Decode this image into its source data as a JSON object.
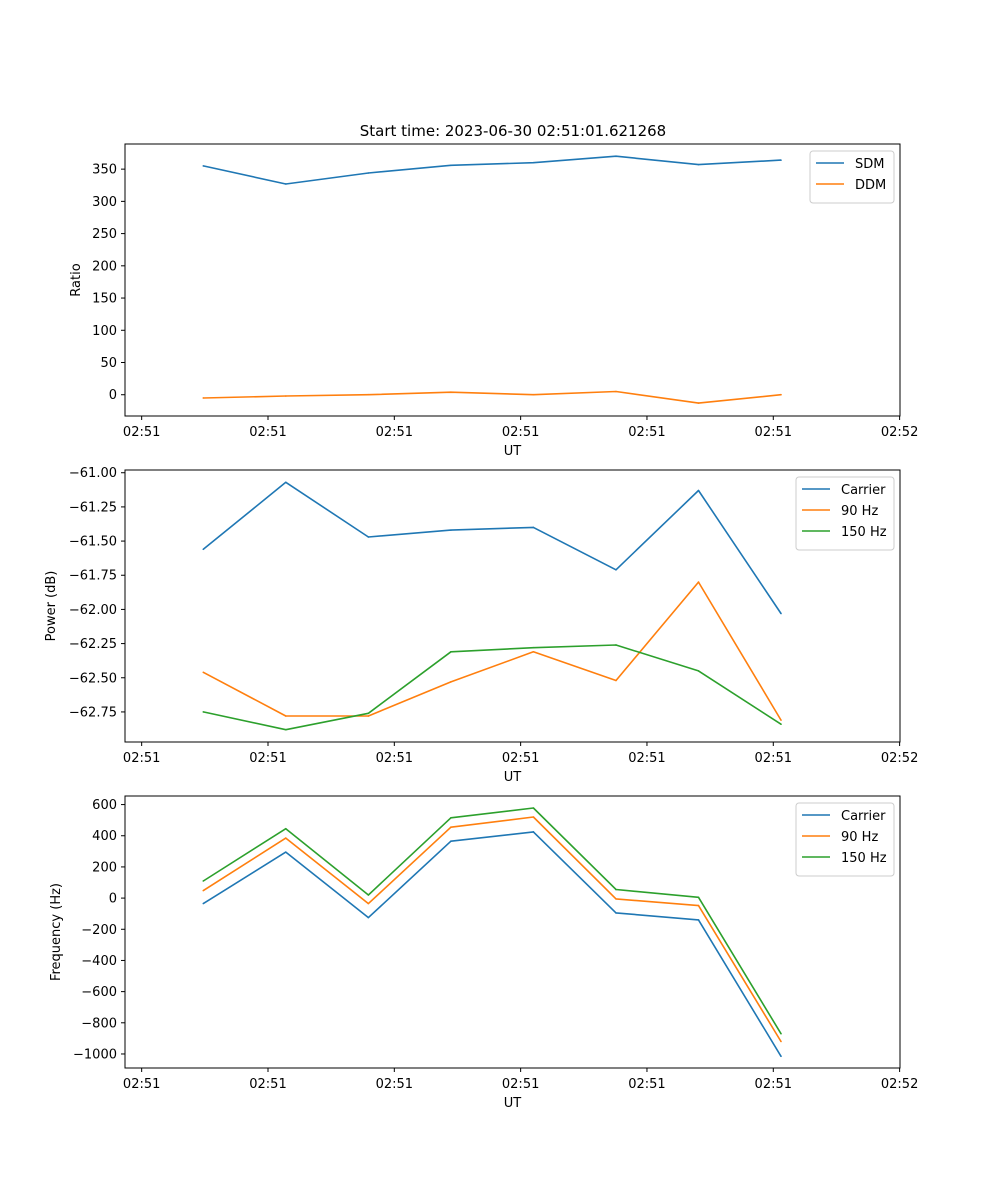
{
  "figure": {
    "title": "Start time: 2023-06-30 02:51:01.621268"
  },
  "chart_data": [
    {
      "type": "line",
      "xlabel": "UT",
      "ylabel": "Ratio",
      "x_tick_labels": [
        "02:51",
        "02:51",
        "02:51",
        "02:51",
        "02:51",
        "02:51",
        "02:52"
      ],
      "y_ticks": [
        0,
        50,
        100,
        150,
        200,
        250,
        300,
        350
      ],
      "ylim": [
        -33,
        389
      ],
      "grid": false,
      "legend": "top-right",
      "series": [
        {
          "name": "SDM",
          "color": "#1f77b4",
          "values": [
            355,
            327,
            344,
            356,
            360,
            370,
            357,
            364
          ]
        },
        {
          "name": "DDM",
          "color": "#ff7f0e",
          "values": [
            -5,
            -2,
            0,
            4,
            0,
            5,
            -13,
            0
          ]
        }
      ]
    },
    {
      "type": "line",
      "xlabel": "UT",
      "ylabel": "Power (dB)",
      "x_tick_labels": [
        "02:51",
        "02:51",
        "02:51",
        "02:51",
        "02:51",
        "02:51",
        "02:52"
      ],
      "y_ticks": [
        -61.0,
        -61.25,
        -61.5,
        -61.75,
        -62.0,
        -62.25,
        -62.5,
        -62.75
      ],
      "y_tick_labels": [
        "−61.00",
        "−61.25",
        "−61.50",
        "−61.75",
        "−62.00",
        "−62.25",
        "−62.50",
        "−62.75"
      ],
      "ylim": [
        -62.97,
        -60.98
      ],
      "grid": false,
      "legend": "top-right",
      "series": [
        {
          "name": "Carrier",
          "color": "#1f77b4",
          "values": [
            -61.56,
            -61.07,
            -61.47,
            -61.42,
            -61.4,
            -61.71,
            -61.13,
            -62.03
          ]
        },
        {
          "name": "90 Hz",
          "color": "#ff7f0e",
          "values": [
            -62.46,
            -62.78,
            -62.78,
            -62.53,
            -62.31,
            -62.52,
            -61.8,
            -62.81
          ]
        },
        {
          "name": "150 Hz",
          "color": "#2ca02c",
          "values": [
            -62.75,
            -62.88,
            -62.76,
            -62.31,
            -62.28,
            -62.26,
            -62.45,
            -62.84
          ]
        }
      ]
    },
    {
      "type": "line",
      "xlabel": "UT",
      "ylabel": "Frequency (Hz)",
      "x_tick_labels": [
        "02:51",
        "02:51",
        "02:51",
        "02:51",
        "02:51",
        "02:51",
        "02:52"
      ],
      "y_ticks": [
        600,
        400,
        200,
        0,
        -200,
        -400,
        -600,
        -800,
        -1000
      ],
      "y_tick_labels": [
        "600",
        "400",
        "200",
        "0",
        "−200",
        "−400",
        "−600",
        "−800",
        "−1000"
      ],
      "ylim": [
        -1090,
        655
      ],
      "grid": false,
      "legend": "top-right",
      "series": [
        {
          "name": "Carrier",
          "color": "#1f77b4",
          "values": [
            -35,
            295,
            -125,
            365,
            425,
            -95,
            -140,
            -1015
          ]
        },
        {
          "name": "90 Hz",
          "color": "#ff7f0e",
          "values": [
            48,
            385,
            -35,
            455,
            520,
            -5,
            -48,
            -920
          ]
        },
        {
          "name": "150 Hz",
          "color": "#2ca02c",
          "values": [
            110,
            445,
            20,
            515,
            578,
            55,
            5,
            -870
          ]
        }
      ]
    }
  ]
}
